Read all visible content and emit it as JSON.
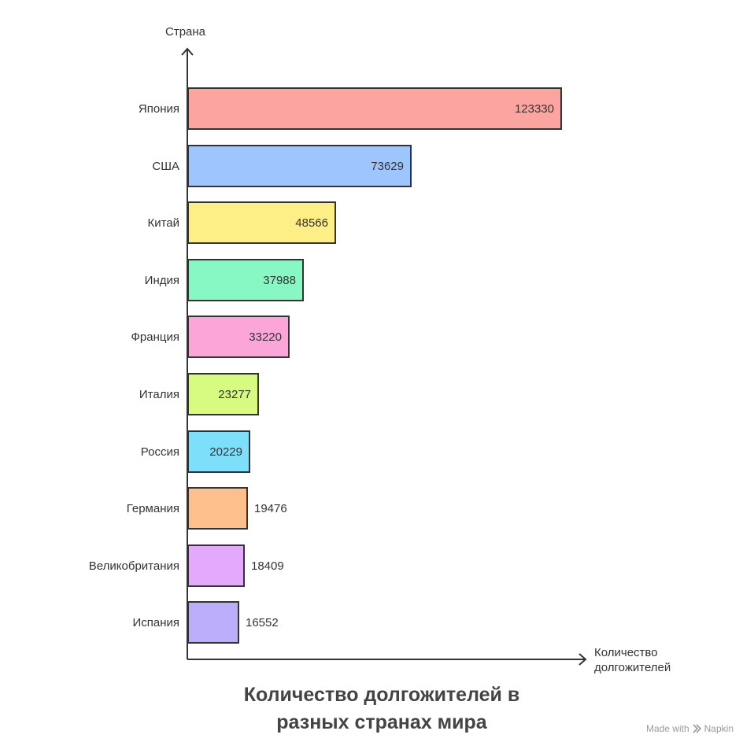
{
  "chart_data": {
    "type": "bar",
    "orientation": "horizontal",
    "title": "Количество долгожителей в разных странах мира",
    "title_lines": [
      "Количество долгожителей в",
      "разных странах мира"
    ],
    "ylabel": "Страна",
    "xlabel_lines": [
      "Количество",
      "долгожителей"
    ],
    "categories": [
      "Япония",
      "США",
      "Китай",
      "Индия",
      "Франция",
      "Италия",
      "Россия",
      "Германия",
      "Великобритания",
      "Испания"
    ],
    "values": [
      123330,
      73629,
      48566,
      37988,
      33220,
      23277,
      20229,
      19476,
      18409,
      16552
    ],
    "colors": [
      "#fca5a0",
      "#9ec5fe",
      "#fdee86",
      "#87f7c4",
      "#fca5d9",
      "#d6fb80",
      "#7ddffa",
      "#fdc08c",
      "#e3aafb",
      "#bcadfb"
    ],
    "grid": false,
    "legend": "none"
  },
  "watermark": {
    "prefix": "Made with",
    "brand": "Napkin",
    "icon": "napkin-icon"
  }
}
